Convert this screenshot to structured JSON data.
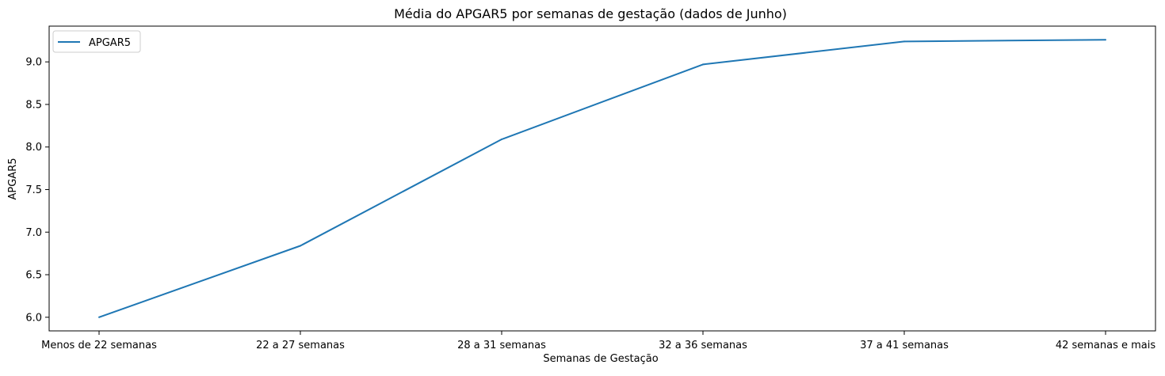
{
  "chart_data": {
    "type": "line",
    "title": "Média do APGAR5 por semanas de gestação (dados de Junho)",
    "xlabel": "Semanas de Gestação",
    "ylabel": "APGAR5",
    "categories": [
      "Menos de 22 semanas",
      "22 a 27 semanas",
      "28 a 31 semanas",
      "32 a 36 semanas",
      "37 a 41 semanas",
      "42 semanas e mais"
    ],
    "series": [
      {
        "name": "APGAR5",
        "values": [
          6.0,
          6.84,
          8.09,
          8.97,
          9.24,
          9.26
        ],
        "color": "#1f77b4"
      }
    ],
    "yticks": [
      "6.0",
      "6.5",
      "7.0",
      "7.5",
      "8.0",
      "8.5",
      "9.0"
    ],
    "ylim": [
      5.84,
      9.42
    ],
    "grid": false,
    "legend": "top-left"
  }
}
